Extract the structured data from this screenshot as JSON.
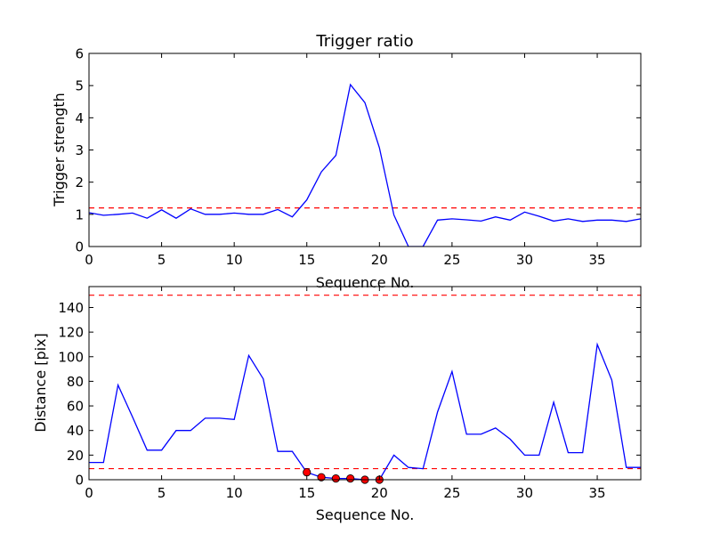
{
  "chart_data": [
    {
      "type": "line",
      "title": "Trigger ratio",
      "xlabel": "Sequence No.",
      "ylabel": "Trigger strength",
      "xlim": [
        0,
        38
      ],
      "ylim": [
        0,
        6
      ],
      "xticks": [
        0,
        5,
        10,
        15,
        20,
        25,
        30,
        35
      ],
      "yticks": [
        0,
        1,
        2,
        3,
        4,
        5,
        6
      ],
      "grid": false,
      "x": [
        0,
        1,
        2,
        3,
        4,
        5,
        6,
        7,
        8,
        9,
        10,
        11,
        12,
        13,
        14,
        15,
        16,
        17,
        18,
        19,
        20,
        21,
        22,
        23,
        24,
        25,
        26,
        27,
        28,
        29,
        30,
        31,
        32,
        33,
        34,
        35,
        36,
        37,
        38
      ],
      "series": [
        {
          "color": "#0000ff",
          "style": "solid",
          "values": [
            1.05,
            0.97,
            1.0,
            1.04,
            0.88,
            1.14,
            0.88,
            1.17,
            1.0,
            1.0,
            1.04,
            1.0,
            1.0,
            1.15,
            0.92,
            1.45,
            2.32,
            2.83,
            5.03,
            4.47,
            3.07,
            0.98,
            0.0,
            0.0,
            0.82,
            0.86,
            0.83,
            0.79,
            0.92,
            0.82,
            1.07,
            0.94,
            0.79,
            0.86,
            0.78,
            0.82,
            0.82,
            0.78,
            0.86
          ]
        }
      ],
      "hlines": [
        {
          "y": 1.2,
          "color": "#ff0000",
          "style": "dashed"
        }
      ]
    },
    {
      "type": "line",
      "title": "",
      "xlabel": "Sequence No.",
      "ylabel": "Distance [pix]",
      "xlim": [
        0,
        38
      ],
      "ylim": [
        0,
        157
      ],
      "xticks": [
        0,
        5,
        10,
        15,
        20,
        25,
        30,
        35
      ],
      "yticks": [
        0,
        20,
        40,
        60,
        80,
        100,
        120,
        140
      ],
      "grid": false,
      "x": [
        0,
        1,
        2,
        3,
        4,
        5,
        6,
        7,
        8,
        9,
        10,
        11,
        12,
        13,
        14,
        15,
        16,
        17,
        18,
        19,
        20,
        21,
        22,
        23,
        24,
        25,
        26,
        27,
        28,
        29,
        30,
        31,
        32,
        33,
        34,
        35,
        36,
        37,
        38
      ],
      "series": [
        {
          "color": "#0000ff",
          "style": "solid",
          "values": [
            14,
            14,
            77,
            51,
            24,
            24,
            40,
            40,
            50,
            50,
            49,
            101,
            82,
            23,
            23,
            6,
            2,
            1,
            1,
            0,
            0,
            20,
            10,
            9,
            55,
            88,
            37,
            37,
            42,
            33,
            20,
            20,
            63,
            22,
            22,
            110,
            81,
            10,
            10
          ]
        }
      ],
      "markers": {
        "color": "#ff0000",
        "x": [
          15,
          16,
          17,
          18,
          19,
          20
        ],
        "y": [
          6,
          2,
          1,
          1,
          0,
          0
        ]
      },
      "hlines": [
        {
          "y": 150,
          "color": "#ff0000",
          "style": "dashed"
        },
        {
          "y": 9,
          "color": "#ff0000",
          "style": "dashed"
        }
      ]
    }
  ]
}
